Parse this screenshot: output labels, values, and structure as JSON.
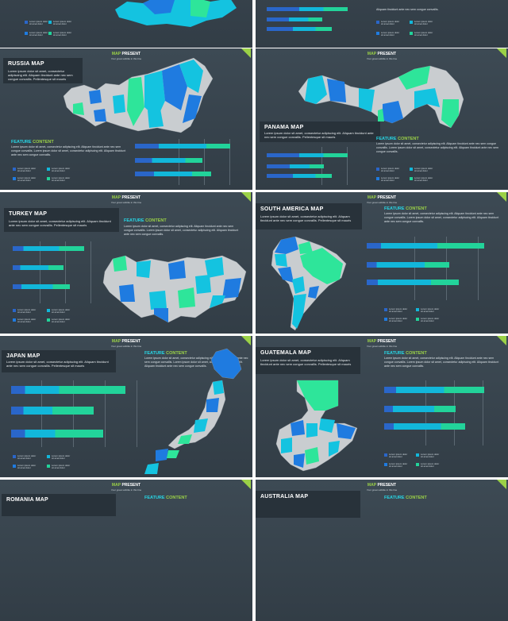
{
  "slides": [
    {
      "id": "top-left-partial",
      "header": {
        "map": "",
        "present": ""
      },
      "subtitle": "",
      "title": "",
      "description": "",
      "feature": {
        "a": "",
        "b": "",
        "desc": ""
      },
      "legend": [
        {
          "t1": "Lorem ipsum dolor",
          "t2": "sit amet dolor"
        },
        {
          "t1": "Lorem ipsum dolor",
          "t2": "sit amet dolor"
        },
        {
          "t1": "Lorem ipsum dolor",
          "t2": "sit amet dolor"
        },
        {
          "t1": "Lorem ipsum dolor",
          "t2": "sit amet dolor"
        }
      ]
    },
    {
      "id": "top-right-partial",
      "header": {
        "map": "",
        "present": ""
      },
      "subtitle": "",
      "title": "",
      "description": "",
      "feature": {
        "a": "",
        "b": "",
        "desc": "Aliquam tincidunt ante nec sem congue convallis."
      },
      "legend": [
        {
          "t1": "Lorem ipsum dolor",
          "t2": "sit amet dolor"
        },
        {
          "t1": "Lorem ipsum dolor",
          "t2": "sit amet dolor"
        },
        {
          "t1": "Lorem ipsum dolor",
          "t2": "sit amet dolor"
        },
        {
          "t1": "Lorem ipsum dolor",
          "t2": "sit amet dolor"
        }
      ]
    },
    {
      "id": "russia",
      "header": {
        "map": "MAP",
        "present": "PRESENT"
      },
      "subtitle": "Your great subtitle in this line",
      "title": "RUSSIA MAP",
      "description": "Lorem ipsum dolor sit amet, consectetur adipiscing elit. Aliquam tincidunt ante nec sem congue convallis. Pellentesque sit mauris",
      "feature": {
        "a": "FEATURE",
        "b": "CONTENT",
        "desc": "Lorem ipsum dolor sit amet, consectetur adipiscing elit. Aliquam tincidunt ante nec sem congue convallis. Lorem ipsum dolor sit amet, consectetur adipiscing elit. Aliquam tincidunt ante nec sem congue convallis."
      },
      "legend": [
        {
          "t1": "Lorem ipsum dolor",
          "t2": "sit amet dolor"
        },
        {
          "t1": "Lorem ipsum dolor",
          "t2": "sit amet dolor"
        },
        {
          "t1": "Lorem ipsum dolor",
          "t2": "sit amet dolor"
        },
        {
          "t1": "Lorem ipsum dolor",
          "t2": "sit amet dolor"
        }
      ]
    },
    {
      "id": "panama",
      "header": {
        "map": "MAP",
        "present": "PRESENT"
      },
      "subtitle": "Your great subtitle in this line",
      "title": "PANAMA MAP",
      "description": "Lorem ipsum dolor sit amet, consectetur adipiscing elit. Aliquam tincidunt ante nec sem congue convallis. Pellentesque sit mauris",
      "feature": {
        "a": "FEATURE",
        "b": "CONTENT",
        "desc": "Lorem ipsum dolor sit amet, consectetur adipiscing elit. Aliquam tincidunt ante nec sem congue convallis. Lorem ipsum dolor sit amet, consectetur adipiscing elit. Aliquam tincidunt ante nec sem congue convallis."
      },
      "legend": [
        {
          "t1": "Lorem ipsum dolor",
          "t2": "sit amet dolor"
        },
        {
          "t1": "Lorem ipsum dolor",
          "t2": "sit amet dolor"
        },
        {
          "t1": "Lorem ipsum dolor",
          "t2": "sit amet dolor"
        },
        {
          "t1": "Lorem ipsum dolor",
          "t2": "sit amet dolor"
        }
      ]
    },
    {
      "id": "turkey",
      "header": {
        "map": "MAP",
        "present": "PRESENT"
      },
      "subtitle": "Your great subtitle in this line",
      "title": "TURKEY MAP",
      "description": "Lorem ipsum dolor sit amet, consectetur adipiscing elit. Aliquam tincidunt ante nec sem congue convallis. Pellentesque sit mauris",
      "feature": {
        "a": "FEATURE",
        "b": "CONTENT",
        "desc": "Lorem ipsum dolor sit amet, consectetur adipiscing elit. Aliquam tincidunt ante nec sem congue convallis. Lorem ipsum dolor sit amet, consectetur adipiscing elit. Aliquam tincidunt ante nec sem congue convallis."
      },
      "legend": [
        {
          "t1": "Lorem ipsum dolor",
          "t2": "sit amet dolor"
        },
        {
          "t1": "Lorem ipsum dolor",
          "t2": "sit amet dolor"
        },
        {
          "t1": "Lorem ipsum dolor",
          "t2": "sit amet dolor"
        },
        {
          "t1": "Lorem ipsum dolor",
          "t2": "sit amet dolor"
        }
      ]
    },
    {
      "id": "south-america",
      "header": {
        "map": "MAP",
        "present": "PRESENT"
      },
      "subtitle": "Your great subtitle in this line",
      "title": "SOUTH AMERICA MAP",
      "description": "Lorem ipsum dolor sit amet, consectetur adipiscing elit. Aliquam tincidunt ante nec sem congue convallis. Pellentesque sit mauris",
      "feature": {
        "a": "FEATURE",
        "b": "CONTENT",
        "desc": "Lorem ipsum dolor sit amet, consectetur adipiscing elit. Aliquam tincidunt ante nec sem congue convallis. Lorem ipsum dolor sit amet, consectetur adipiscing elit. Aliquam tincidunt ante nec sem congue convallis."
      },
      "legend": [
        {
          "t1": "Lorem ipsum dolor",
          "t2": "sit amet dolor"
        },
        {
          "t1": "Lorem ipsum dolor",
          "t2": "sit amet dolor"
        },
        {
          "t1": "Lorem ipsum dolor",
          "t2": "sit amet dolor"
        },
        {
          "t1": "Lorem ipsum dolor",
          "t2": "sit amet dolor"
        }
      ]
    },
    {
      "id": "japan",
      "header": {
        "map": "MAP",
        "present": "PRESENT"
      },
      "subtitle": "Your great subtitle in this line",
      "title": "JAPAN MAP",
      "description": "Lorem ipsum dolor sit amet, consectetur adipiscing elit. Aliquam tincidunt ante nec sem congue convallis. Pellentesque sit mauris",
      "feature": {
        "a": "FEATURE",
        "b": "CONTENT",
        "desc": "Lorem ipsum dolor sit amet, consectetur adipiscing elit. Aliquam tincidunt ante nec sem congue convallis. Lorem ipsum dolor sit amet, consectetur adipiscing elit. Aliquam tincidunt ante nec sem congue convallis."
      },
      "legend": [
        {
          "t1": "Lorem ipsum dolor",
          "t2": "sit amet dolor"
        },
        {
          "t1": "Lorem ipsum dolor",
          "t2": "sit amet dolor"
        },
        {
          "t1": "Lorem ipsum dolor",
          "t2": "sit amet dolor"
        },
        {
          "t1": "Lorem ipsum dolor",
          "t2": "sit amet dolor"
        }
      ]
    },
    {
      "id": "guatemala",
      "header": {
        "map": "MAP",
        "present": "PRESENT"
      },
      "subtitle": "Your great subtitle in this line",
      "title": "GUATEMALA MAP",
      "description": "Lorem ipsum dolor sit amet, consectetur adipiscing elit. Aliquam tincidunt ante nec sem congue convallis. Pellentesque sit mauris",
      "feature": {
        "a": "FEATURE",
        "b": "CONTENT",
        "desc": "Lorem ipsum dolor sit amet, consectetur adipiscing elit. Aliquam tincidunt ante nec sem congue convallis. Lorem ipsum dolor sit amet, consectetur adipiscing elit. Aliquam tincidunt ante nec sem congue convallis."
      },
      "legend": [
        {
          "t1": "Lorem ipsum dolor",
          "t2": "sit amet dolor"
        },
        {
          "t1": "Lorem ipsum dolor",
          "t2": "sit amet dolor"
        },
        {
          "t1": "Lorem ipsum dolor",
          "t2": "sit amet dolor"
        },
        {
          "t1": "Lorem ipsum dolor",
          "t2": "sit amet dolor"
        }
      ]
    },
    {
      "id": "romania",
      "header": {
        "map": "MAP",
        "present": "PRESENT"
      },
      "subtitle": "Your great subtitle in this line",
      "title": "ROMANIA MAP",
      "description": "",
      "feature": {
        "a": "FEATURE",
        "b": "CONTENT",
        "desc": ""
      },
      "legend": []
    },
    {
      "id": "australia",
      "header": {
        "map": "MAP",
        "present": "PRESENT"
      },
      "subtitle": "Your great subtitle in this line",
      "title": "AUSTRALIA MAP",
      "description": "",
      "feature": {
        "a": "FEATURE",
        "b": "CONTENT",
        "desc": ""
      },
      "legend": []
    }
  ],
  "colors": {
    "background": "#ffffff",
    "slide": "#38444d",
    "title_box": "#28323a",
    "accent_green": "#9bd147",
    "feature_cyan": "#27d7e6",
    "bar_blue": "#2a66c9",
    "bar_cyan": "#12b7da",
    "bar_green": "#22d39a",
    "map_grey": "#c9cdd0",
    "map_blue": "#1f7be0",
    "map_cyan": "#14c3e0",
    "map_green": "#2ee59a"
  }
}
